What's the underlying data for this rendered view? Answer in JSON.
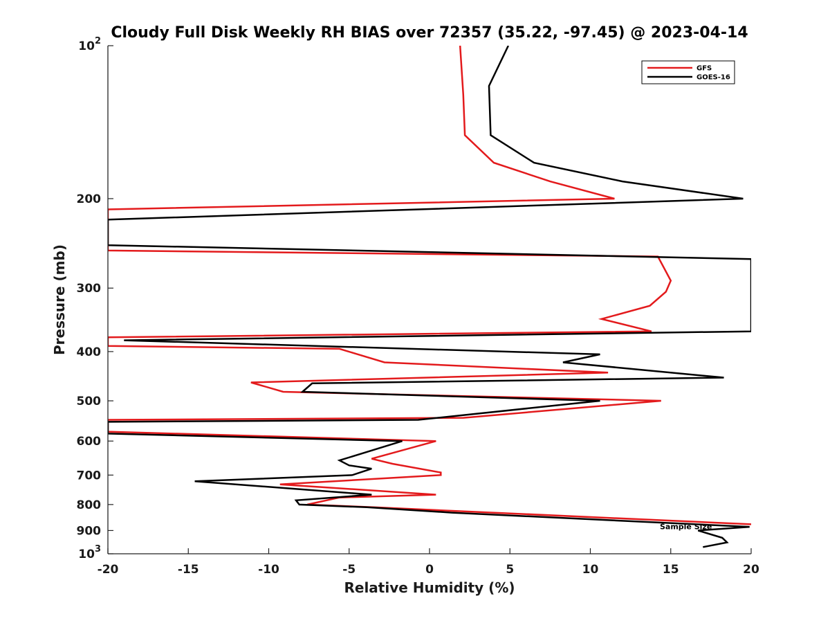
{
  "chart_data": {
    "type": "line",
    "title": "Cloudy Full Disk Weekly RH BIAS over 72357 (35.22, -97.45) @ 2023-04-14",
    "xlabel": "Relative Humidity (%)",
    "ylabel": "Pressure (mb)",
    "xlim": [
      -20,
      20
    ],
    "ylim": [
      100,
      1000
    ],
    "y_scale": "log",
    "y_reversed": true,
    "grid": false,
    "legend_position": "top-right",
    "x_ticks": [
      -20,
      -15,
      -10,
      -5,
      0,
      5,
      10,
      15,
      20
    ],
    "x_tick_labels": [
      "-20",
      "-15",
      "-10",
      "-5",
      "0",
      "5",
      "10",
      "15",
      "20"
    ],
    "y_ticks": [
      100,
      200,
      300,
      400,
      500,
      600,
      700,
      800,
      900,
      1000
    ],
    "y_tick_labels": [
      {
        "base": "10",
        "exp": "2"
      },
      {
        "base": "200"
      },
      {
        "base": "300"
      },
      {
        "base": "400"
      },
      {
        "base": "500"
      },
      {
        "base": "600"
      },
      {
        "base": "700"
      },
      {
        "base": "800"
      },
      {
        "base": "900"
      },
      {
        "base": "10",
        "exp": "3"
      }
    ],
    "series": [
      {
        "name": "GFS",
        "color": "#e31a1c",
        "points": [
          [
            1.9,
            100
          ],
          [
            2.1,
            125
          ],
          [
            2.2,
            150
          ],
          [
            4.0,
            170
          ],
          [
            7.5,
            185
          ],
          [
            11.5,
            200
          ],
          [
            -20,
            210
          ],
          [
            -20,
            253
          ],
          [
            14.2,
            260
          ],
          [
            15.0,
            290
          ],
          [
            14.7,
            305
          ],
          [
            13.7,
            325
          ],
          [
            10.7,
            345
          ],
          [
            13.8,
            365
          ],
          [
            -20,
            375
          ],
          [
            -20,
            390
          ],
          [
            -5.6,
            395
          ],
          [
            -2.8,
            420
          ],
          [
            11.1,
            440
          ],
          [
            -11.1,
            460
          ],
          [
            -9.1,
            480
          ],
          [
            14.4,
            500
          ],
          [
            2.1,
            540
          ],
          [
            -20,
            545
          ],
          [
            -20,
            575
          ],
          [
            0.4,
            600
          ],
          [
            -3.6,
            650
          ],
          [
            -2.3,
            665
          ],
          [
            0.7,
            692
          ],
          [
            0.7,
            700
          ],
          [
            -9.3,
            730
          ],
          [
            0.4,
            765
          ],
          [
            -5.6,
            775
          ],
          [
            -7.6,
            800
          ],
          [
            -3.5,
            810
          ],
          [
            20,
            875
          ]
        ]
      },
      {
        "name": "GOES-16",
        "color": "#000000",
        "points": [
          [
            4.9,
            100
          ],
          [
            3.7,
            120
          ],
          [
            3.8,
            150
          ],
          [
            6.5,
            170
          ],
          [
            12.0,
            185
          ],
          [
            19.5,
            200
          ],
          [
            -20,
            220
          ],
          [
            -20,
            247
          ],
          [
            20,
            263
          ],
          [
            20,
            365
          ],
          [
            -19,
            380
          ],
          [
            10.6,
            405
          ],
          [
            8.3,
            420
          ],
          [
            18.3,
            450
          ],
          [
            -7.3,
            462
          ],
          [
            -7.9,
            480
          ],
          [
            10.6,
            500
          ],
          [
            -0.7,
            545
          ],
          [
            -20,
            550
          ],
          [
            -20,
            580
          ],
          [
            -1.7,
            600
          ],
          [
            -5.6,
            655
          ],
          [
            -5.0,
            670
          ],
          [
            -3.6,
            680
          ],
          [
            -4.8,
            700
          ],
          [
            -14.6,
            720
          ],
          [
            -3.6,
            765
          ],
          [
            -8.3,
            785
          ],
          [
            -8.1,
            800
          ],
          [
            -3.9,
            810
          ],
          [
            1.4,
            830
          ],
          [
            19.9,
            885
          ],
          [
            16.7,
            900
          ],
          [
            18.2,
            930
          ],
          [
            18.5,
            950
          ],
          [
            17.0,
            970
          ]
        ]
      }
    ],
    "annotations": [
      {
        "text": "Sample Size",
        "x": 16.2,
        "y": 900
      }
    ]
  }
}
